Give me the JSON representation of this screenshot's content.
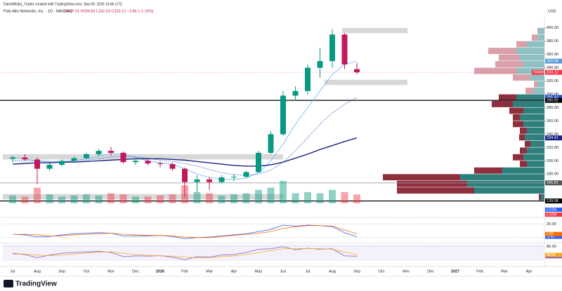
{
  "header": {
    "credit": "DanielMejia_Trader created with TradingView.com, Sep 09, 2026 19:46 UTC",
    "symbol": "Palo Alto Networks, Inc. · 1D · NASDAQ",
    "ohlc": "O337.91 H339.83 L332.53 C333.12 −3.86 (−1.15%)",
    "currency": "USD"
  },
  "footer": {
    "brand": "TradingView"
  },
  "chart_data": {
    "type": "candlestick",
    "categories": [
      "Jul",
      null,
      "Aug",
      null,
      "Sep",
      null,
      "Oct",
      null,
      "Nov",
      null,
      "Dec",
      null,
      "2026",
      null,
      "Feb",
      null,
      "Mar",
      null,
      "Apr",
      null,
      "May",
      null,
      "Jun",
      null,
      "Jul",
      null,
      "Aug",
      null,
      "Sep"
    ],
    "future_months": [
      "Oct",
      "Nov",
      "Dec",
      "2027",
      "Feb",
      "Mar",
      "Apr"
    ],
    "open": [
      203,
      205,
      202,
      188,
      194,
      200,
      204,
      210,
      215,
      212,
      198,
      200,
      196,
      195,
      188,
      168,
      172,
      168,
      175,
      176,
      183,
      212,
      240,
      298,
      305,
      340,
      350,
      390,
      337.91
    ],
    "high": [
      208,
      210,
      205,
      196,
      202,
      206,
      212,
      218,
      221,
      214,
      203,
      202,
      199,
      197,
      190,
      178,
      176,
      178,
      180,
      185,
      215,
      245,
      305,
      312,
      345,
      370,
      398,
      392,
      347
    ],
    "low": [
      198,
      200,
      165,
      185,
      192,
      198,
      202,
      207,
      208,
      196,
      194,
      193,
      190,
      185,
      145,
      152,
      156,
      166,
      170,
      174,
      182,
      210,
      238,
      290,
      300,
      325,
      340,
      338,
      330
    ],
    "close": [
      205,
      202,
      188,
      194,
      200,
      204,
      210,
      215,
      212,
      198,
      200,
      196,
      195,
      188,
      168,
      172,
      168,
      175,
      176,
      183,
      212,
      240,
      298,
      305,
      340,
      350,
      390,
      345,
      333.12
    ],
    "up_color": "#089981",
    "down_color": "#c2185b",
    "moving_averages": [
      {
        "name": "MA50",
        "color": "#64b5f6",
        "style": "solid",
        "values": [
          205,
          203,
          200,
          198,
          198,
          200,
          203,
          207,
          211,
          210,
          205,
          200,
          197,
          195,
          188,
          180,
          175,
          172,
          172,
          174,
          182,
          200,
          225,
          255,
          280,
          305,
          330,
          345,
          349.98
        ]
      },
      {
        "name": "MA100",
        "color": "#1e50c8",
        "style": "dotted",
        "values": [
          200,
          200,
          200,
          199,
          199,
          200,
          201,
          203,
          206,
          207,
          206,
          204,
          201,
          199,
          196,
          192,
          187,
          182,
          179,
          178,
          180,
          186,
          198,
          215,
          235,
          255,
          272,
          285,
          295.42
        ]
      },
      {
        "name": "MA200",
        "color": "#1a237e",
        "style": "solid",
        "values": [
          195,
          196,
          197,
          197,
          198,
          198,
          199,
          200,
          201,
          202,
          203,
          203,
          203,
          202,
          201,
          199,
          197,
          195,
          193,
          192,
          192,
          194,
          198,
          204,
          210,
          217,
          223,
          229,
          234.41
        ]
      }
    ],
    "volume": [
      7,
      6,
      14,
      8,
      6,
      7,
      8,
      7,
      9,
      8,
      6,
      6,
      7,
      8,
      16,
      10,
      9,
      7,
      8,
      9,
      12,
      14,
      20,
      9,
      10,
      9,
      12,
      10,
      8
    ],
    "volume_labels": [
      "6.81M",
      "2.42M"
    ],
    "ylim": [
      136,
      405
    ],
    "yticks": [
      {
        "value": 400,
        "label": "400.00"
      },
      {
        "value": 380,
        "label": "380.00"
      },
      {
        "value": 360,
        "label": "360.00"
      },
      {
        "value": 340,
        "label": "340.00"
      },
      {
        "value": 320,
        "label": "320.00"
      },
      {
        "value": 300,
        "label": "300.00"
      },
      {
        "value": 280,
        "label": "280.00"
      },
      {
        "value": 260,
        "label": "260.00"
      },
      {
        "value": 240,
        "label": "240.00"
      },
      {
        "value": 220,
        "label": "220.00"
      },
      {
        "value": 200,
        "label": "200.00"
      },
      {
        "value": 180,
        "label": "180.00"
      }
    ],
    "price_lines": [
      {
        "value": 290.92,
        "color": "#000000"
      },
      {
        "value": 139.58,
        "color": "#000000"
      },
      {
        "value": 166.81,
        "color": "#9e9e9e"
      }
    ],
    "price_tags": [
      {
        "value": 349.98,
        "color": "#5b9bd5"
      },
      {
        "value": 333.12,
        "color": "#f23645"
      },
      {
        "value": 295.42,
        "color": "#1e50c8"
      },
      {
        "value": 290.92,
        "color": "#000000"
      },
      {
        "value": 234.41,
        "color": "#1a237e"
      },
      {
        "value": 166.81,
        "color": "#555555"
      },
      {
        "value": 139.58,
        "color": "#000000"
      }
    ],
    "symbol_tag": "PANW",
    "zones": [
      [
        392,
        400
      ],
      [
        314,
        322
      ],
      [
        202,
        210
      ],
      [
        142,
        150
      ]
    ],
    "volume_profile": {
      "levels": [
        395,
        385,
        375,
        365,
        355,
        345,
        335,
        325,
        315,
        305,
        295,
        285,
        275,
        265,
        255,
        245,
        235,
        225,
        215,
        205,
        195,
        185,
        175,
        165,
        155,
        145
      ],
      "up": [
        8,
        10,
        25,
        40,
        35,
        30,
        40,
        20,
        10,
        15,
        40,
        45,
        30,
        35,
        30,
        25,
        28,
        20,
        25,
        30,
        25,
        60,
        120,
        110,
        100,
        5
      ],
      "down": [
        2,
        8,
        15,
        40,
        30,
        40,
        60,
        25,
        5,
        12,
        25,
        30,
        20,
        10,
        15,
        10,
        8,
        8,
        10,
        15,
        10,
        40,
        110,
        100,
        110,
        3
      ]
    },
    "macd": {
      "ylim": [
        -13,
        27
      ],
      "yticks": [
        {
          "value": 20,
          "label": "20.00"
        },
        {
          "value": -5,
          "label": "-5.00"
        }
      ],
      "series": [
        {
          "name": "MACD",
          "color": "#2962ff",
          "values": [
            1,
            0,
            -4,
            -3,
            0,
            2,
            3,
            4,
            3,
            -2,
            -2,
            -2,
            -1,
            -3,
            -7,
            -5,
            -4,
            -2,
            0,
            2,
            6,
            10,
            18,
            16,
            18,
            17,
            15,
            4,
            -3.42
          ]
        },
        {
          "name": "Signal",
          "color": "#ff6d00",
          "values": [
            1,
            1,
            0,
            -2,
            -2,
            0,
            1,
            2,
            3,
            1,
            0,
            -1,
            -1,
            -2,
            -4,
            -5,
            -5,
            -3,
            -1,
            1,
            3,
            6,
            12,
            15,
            17,
            17,
            16,
            9,
            1.56
          ]
        }
      ]
    },
    "rsi": {
      "ylim": [
        10,
        90
      ],
      "yticks": [
        {
          "value": 80,
          "label": "80.00"
        }
      ],
      "series": [
        {
          "name": "RSI",
          "color": "#7e57c2",
          "values": [
            55,
            50,
            38,
            48,
            55,
            58,
            60,
            62,
            58,
            42,
            45,
            44,
            46,
            40,
            30,
            42,
            40,
            48,
            50,
            58,
            70,
            72,
            80,
            68,
            74,
            70,
            72,
            45,
            43.68
          ]
        },
        {
          "name": "RSI MA",
          "color": "#f9a825",
          "values": [
            52,
            52,
            48,
            46,
            48,
            52,
            56,
            59,
            60,
            55,
            50,
            47,
            45,
            44,
            40,
            38,
            38,
            42,
            45,
            50,
            58,
            65,
            72,
            72,
            73,
            72,
            70,
            60,
            48.54
          ]
        }
      ]
    }
  }
}
